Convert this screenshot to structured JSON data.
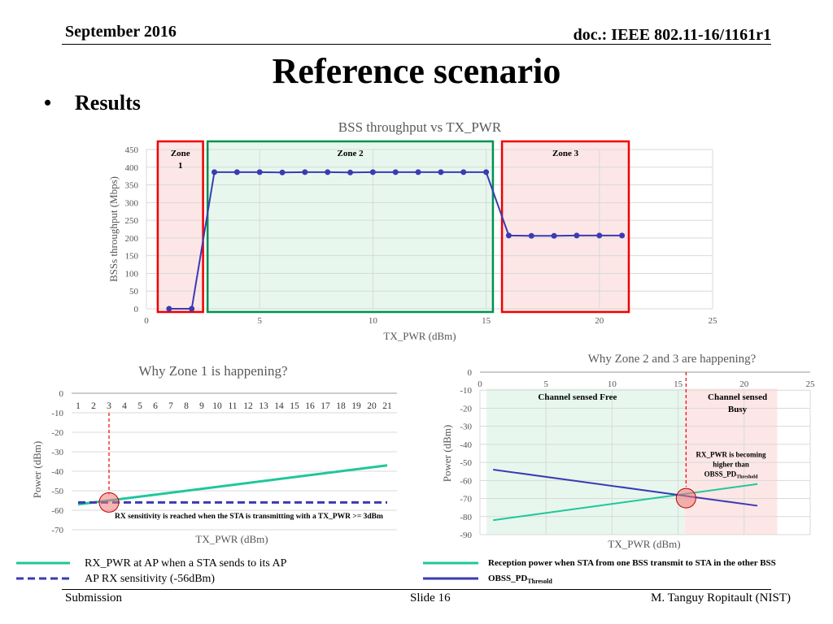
{
  "header": {
    "date": "September 2016",
    "doc": "doc.: IEEE 802.11-16/1161r1"
  },
  "title": "Reference scenario",
  "bullet": {
    "symbol": "•",
    "text": "Results"
  },
  "footer": {
    "left": "Submission",
    "middle": "Slide 16",
    "right": "M. Tanguy Ropitault (NIST)"
  },
  "colors": {
    "blue_series": "#3b3bb3",
    "green_series": "#1fc79a",
    "red_outline": "#ee0000",
    "green_outline": "#009150",
    "zone_red_fill": "#fde6e6",
    "zone_green_fill": "#e7f7ee"
  },
  "chart_data": [
    {
      "type": "line",
      "title": "BSS throughput vs TX_PWR",
      "xlabel": "TX_PWR (dBm)",
      "ylabel": "BSSs throughput (Mbps)",
      "xlim": [
        0,
        25
      ],
      "ylim": [
        0,
        450
      ],
      "x_ticks": [
        "0",
        "5",
        "10",
        "15",
        "20",
        "25"
      ],
      "y_ticks": [
        "0",
        "50",
        "100",
        "150",
        "200",
        "250",
        "300",
        "350",
        "400",
        "450"
      ],
      "grid": true,
      "series": [
        {
          "x": [
            1,
            2,
            3,
            4,
            5,
            6,
            7,
            8,
            9,
            10,
            11,
            12,
            13,
            14,
            15,
            16,
            17,
            18,
            19,
            20,
            21
          ],
          "values": [
            0,
            0,
            386,
            386,
            386,
            385,
            386,
            386,
            385,
            386,
            386,
            386,
            386,
            386,
            386,
            207,
            206,
            206,
            207,
            207,
            207
          ]
        }
      ],
      "zones": [
        {
          "label": "Zone 1",
          "label_lines": [
            "Zone",
            "1"
          ],
          "x_range": [
            0.5,
            2.5
          ],
          "style": "red"
        },
        {
          "label": "Zone 2",
          "label_lines": [
            "Zone 2"
          ],
          "x_range": [
            2.7,
            15.3
          ],
          "style": "green"
        },
        {
          "label": "Zone 3",
          "label_lines": [
            "Zone 3"
          ],
          "x_range": [
            15.7,
            21.3
          ],
          "style": "red"
        }
      ]
    },
    {
      "type": "line",
      "title": "Why Zone 1 is happening?",
      "xlabel": "TX_PWR (dBm)",
      "ylabel": "Power (dBm)",
      "ylim": [
        -70,
        0
      ],
      "x_ticks": [
        "1",
        "2",
        "3",
        "4",
        "5",
        "6",
        "7",
        "8",
        "9",
        "10",
        "11",
        "12",
        "13",
        "14",
        "15",
        "16",
        "17",
        "18",
        "19",
        "20",
        "21"
      ],
      "y_ticks": [
        "0",
        "-10",
        "-20",
        "-30",
        "-40",
        "-50",
        "-60",
        "-70"
      ],
      "grid": true,
      "series": [
        {
          "name": "RX_PWR at AP when a STA sends to its AP",
          "x": [
            1,
            21
          ],
          "values": [
            -57,
            -37
          ],
          "style": "solid",
          "color": "#1fc79a"
        },
        {
          "name": "AP RX sensitivity (-56dBm)",
          "x": [
            1,
            21
          ],
          "values": [
            -56,
            -56
          ],
          "style": "dashed",
          "color": "#3b3bb3"
        }
      ],
      "marker_x": 3,
      "marker_y": -56,
      "annotation": "RX sensitivity is reached when the STA is transmitting with a TX_PWR >= 3dBm"
    },
    {
      "type": "line",
      "title": "Why Zone 2 and 3 are happening?",
      "xlabel": "TX_PWR (dBm)",
      "ylabel": "Power (dBm)",
      "xlim": [
        0,
        25
      ],
      "ylim": [
        -90,
        0
      ],
      "x_ticks": [
        "0",
        "5",
        "10",
        "15",
        "20",
        "25"
      ],
      "y_ticks": [
        "0",
        "-10",
        "-20",
        "-30",
        "-40",
        "-50",
        "-60",
        "-70",
        "-80",
        "-90"
      ],
      "grid": true,
      "series": [
        {
          "name": "Reception power when STA from one BSS transmit to STA in the other BSS",
          "x": [
            1,
            21
          ],
          "values": [
            -82,
            -62
          ],
          "color": "#1fc79a"
        },
        {
          "name": "OBSS_PD",
          "name_sub": "Thresold",
          "x": [
            1,
            21
          ],
          "values": [
            -54,
            -74
          ],
          "color": "#3b3bb3"
        }
      ],
      "marker_x": 15.6,
      "marker_y": -68,
      "regions": [
        {
          "label_lines": [
            "Channel sensed Free"
          ],
          "x_range": [
            0.5,
            15.5
          ],
          "style": "green"
        },
        {
          "label_lines": [
            "Channel sensed",
            "Busy"
          ],
          "x_range": [
            15.5,
            22.5
          ],
          "style": "red"
        }
      ],
      "annotation_lines": [
        "RX_PWR is becoming",
        "higher than"
      ],
      "annotation_last": "OBSS_PD",
      "annotation_sub": "Threshold"
    }
  ]
}
